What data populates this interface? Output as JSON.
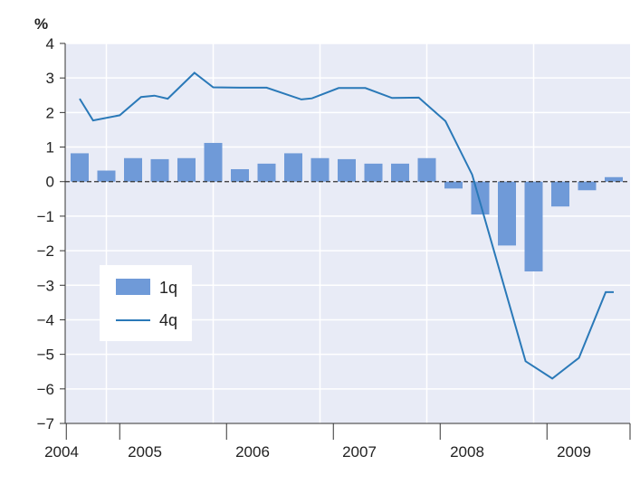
{
  "chart_data": {
    "type": "bar+line",
    "unit_label": "%",
    "ylim": [
      -7,
      4
    ],
    "y_ticks": [
      "4",
      "3",
      "2",
      "1",
      "0",
      "−1",
      "−2",
      "−3",
      "−4",
      "−5",
      "−6",
      "−7"
    ],
    "y_tick_values": [
      4,
      3,
      2,
      1,
      0,
      -1,
      -2,
      -3,
      -4,
      -5,
      -6,
      -7
    ],
    "year_labels": [
      "2004",
      "2005",
      "2006",
      "2007",
      "2008",
      "2009"
    ],
    "categories": [
      "2004Q3",
      "2004Q4",
      "2005Q1",
      "2005Q2",
      "2005Q3",
      "2005Q4",
      "2006Q1",
      "2006Q2",
      "2006Q3",
      "2006Q4",
      "2007Q1",
      "2007Q2",
      "2007Q3",
      "2007Q4",
      "2008Q1",
      "2008Q2",
      "2008Q3",
      "2008Q4",
      "2009Q1",
      "2009Q2",
      "2009Q3"
    ],
    "grid": true,
    "zero_line": "dashed",
    "legend_position": "lower-left",
    "series": [
      {
        "name": "1q",
        "type": "bar",
        "color": "#6f9ad8",
        "values": [
          0.82,
          0.32,
          0.68,
          0.65,
          0.68,
          1.12,
          0.36,
          0.52,
          0.82,
          0.68,
          0.65,
          0.52,
          0.52,
          0.68,
          -0.2,
          -0.95,
          -1.85,
          -2.6,
          -0.72,
          -0.25,
          0.13
        ]
      },
      {
        "name": "4q",
        "type": "line",
        "color": "#2a79b8",
        "x": [
          0,
          0.5,
          1.5,
          2.3,
          2.8,
          3.3,
          4.3,
          5,
          6,
          7,
          8.3,
          8.7,
          9.7,
          10.7,
          11.7,
          12.7,
          13.7,
          14.7,
          16.7,
          17.7,
          18.7,
          19.7,
          20
        ],
        "values": [
          2.4,
          1.77,
          1.92,
          2.45,
          2.49,
          2.4,
          3.15,
          2.73,
          2.72,
          2.72,
          2.38,
          2.41,
          2.71,
          2.71,
          2.42,
          2.43,
          1.75,
          0.2,
          -5.2,
          -5.7,
          -5.1,
          -3.2,
          -3.2
        ]
      }
    ]
  }
}
